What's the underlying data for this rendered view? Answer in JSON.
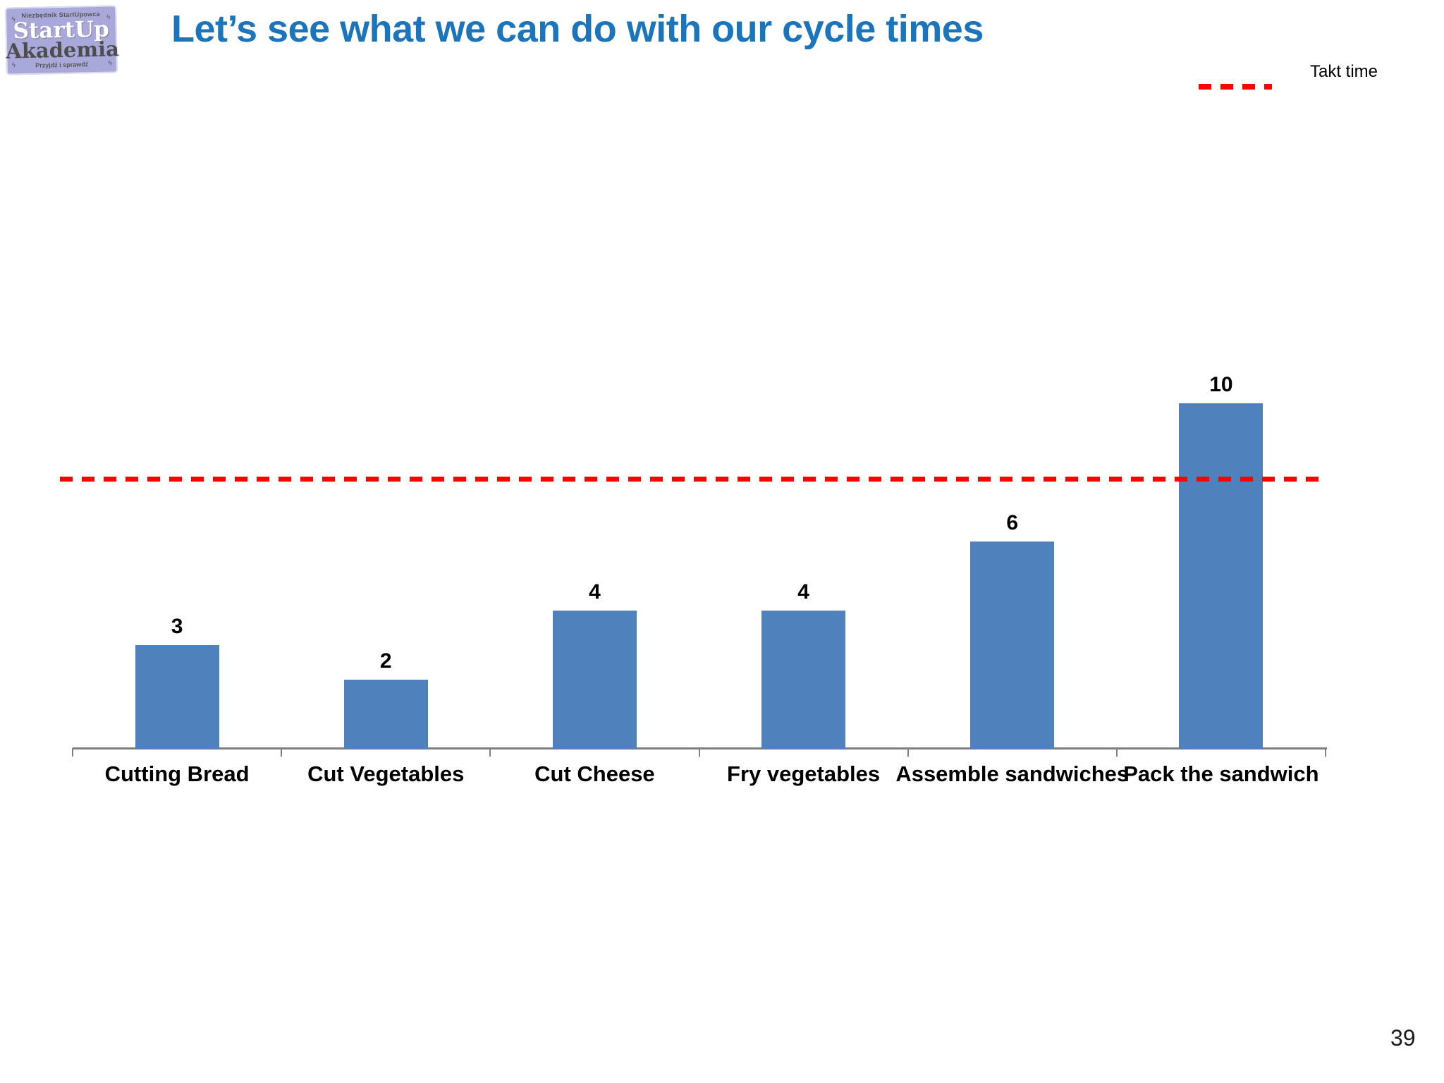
{
  "header": {
    "title": "Let’s see what we can do with our cycle times",
    "title_color": "#1B75BC"
  },
  "logo": {
    "top_text": "Niezbędnik StartUpowca",
    "name_line1": "StartUp",
    "name_line2": "Akademia",
    "bottom_text": "Przyjdź i sprawdź",
    "bg_color": "#A8A8DA",
    "ornament": "ϟ"
  },
  "legend": {
    "takt_label": "Takt time",
    "line_color": "#FF0000"
  },
  "chart_data": {
    "type": "bar",
    "title": "",
    "categories": [
      "Cutting Bread",
      "Cut Vegetables",
      "Cut Cheese",
      "Fry vegetables",
      "Assemble sandwiches",
      "Pack the sandwich"
    ],
    "values": [
      3,
      2,
      4,
      4,
      6,
      10
    ],
    "value_labels_shown": true,
    "bar_color": "#4F81BD",
    "axis_color": "#7F7F7F",
    "takt_line_value": 7.8,
    "takt_line_style": "dashed",
    "takt_line_color": "#FF0000",
    "xlabel": "",
    "ylabel": "",
    "ylim": [
      0,
      10.5
    ],
    "grid": false,
    "legend_position": "top-right"
  },
  "footer": {
    "page_number": "39"
  }
}
